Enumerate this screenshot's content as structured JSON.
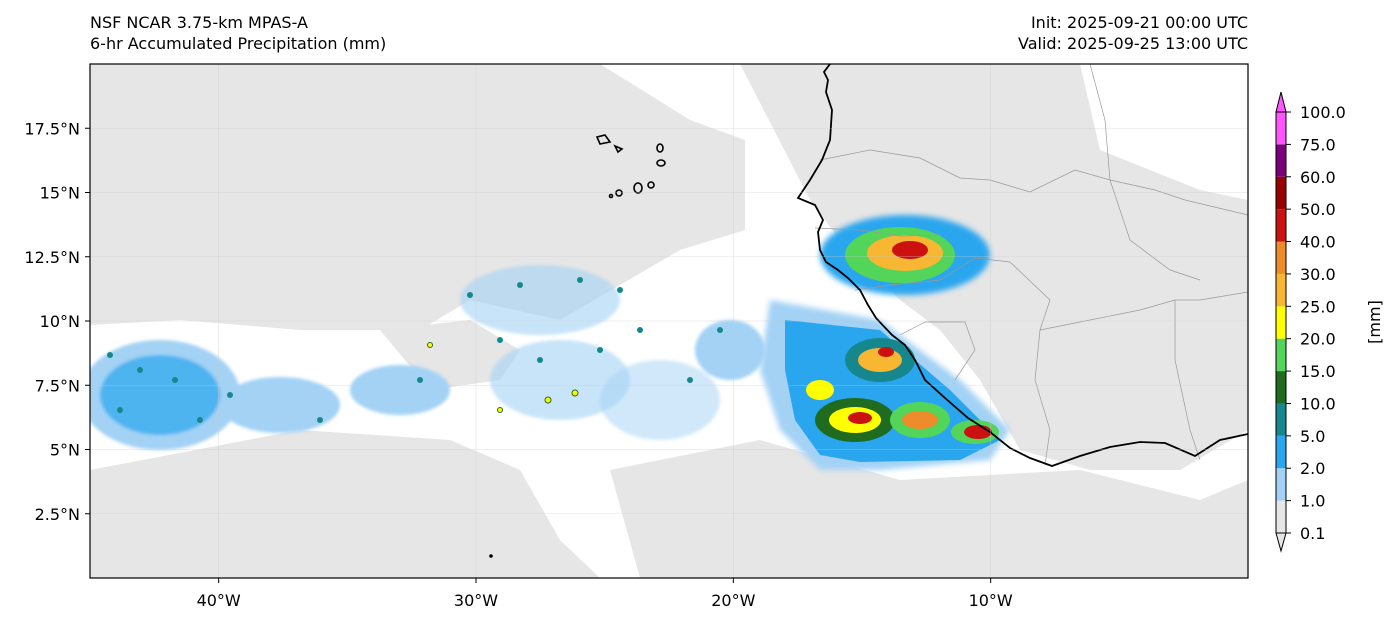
{
  "header": {
    "model": "NSF NCAR 3.75-km MPAS-A",
    "product": "6-hr Accumulated Precipitation (mm)",
    "init": "Init: 2025-09-21 00:00 UTC",
    "valid": "Valid: 2025-09-25 13:00 UTC"
  },
  "map": {
    "lon_range": [
      -45,
      0
    ],
    "lat_range": [
      0,
      20
    ],
    "lon_ticks": [
      {
        "value": -40,
        "label": "40°W"
      },
      {
        "value": -30,
        "label": "30°W"
      },
      {
        "value": -20,
        "label": "20°W"
      },
      {
        "value": -10,
        "label": "10°W"
      }
    ],
    "lat_ticks": [
      {
        "value": 17.5,
        "label": "17.5°N"
      },
      {
        "value": 15,
        "label": "15°N"
      },
      {
        "value": 12.5,
        "label": "12.5°N"
      },
      {
        "value": 10,
        "label": "10°N"
      },
      {
        "value": 7.5,
        "label": "7.5°N"
      },
      {
        "value": 5,
        "label": "5°N"
      },
      {
        "value": 2.5,
        "label": "2.5°N"
      }
    ]
  },
  "colorbar": {
    "unit_label": "[mm]",
    "levels": [
      "0.1",
      "1.0",
      "2.0",
      "5.0",
      "10.0",
      "15.0",
      "20.0",
      "25.0",
      "30.0",
      "40.0",
      "50.0",
      "60.0",
      "75.0",
      "100.0"
    ],
    "colors": [
      "#e6e6e6",
      "#a3d2f5",
      "#2aa6ee",
      "#16888d",
      "#1f6b1f",
      "#53d55a",
      "#ffff00",
      "#f7b733",
      "#ee8b2b",
      "#cc1111",
      "#990000",
      "#7a007a",
      "#ff55ff"
    ]
  }
}
